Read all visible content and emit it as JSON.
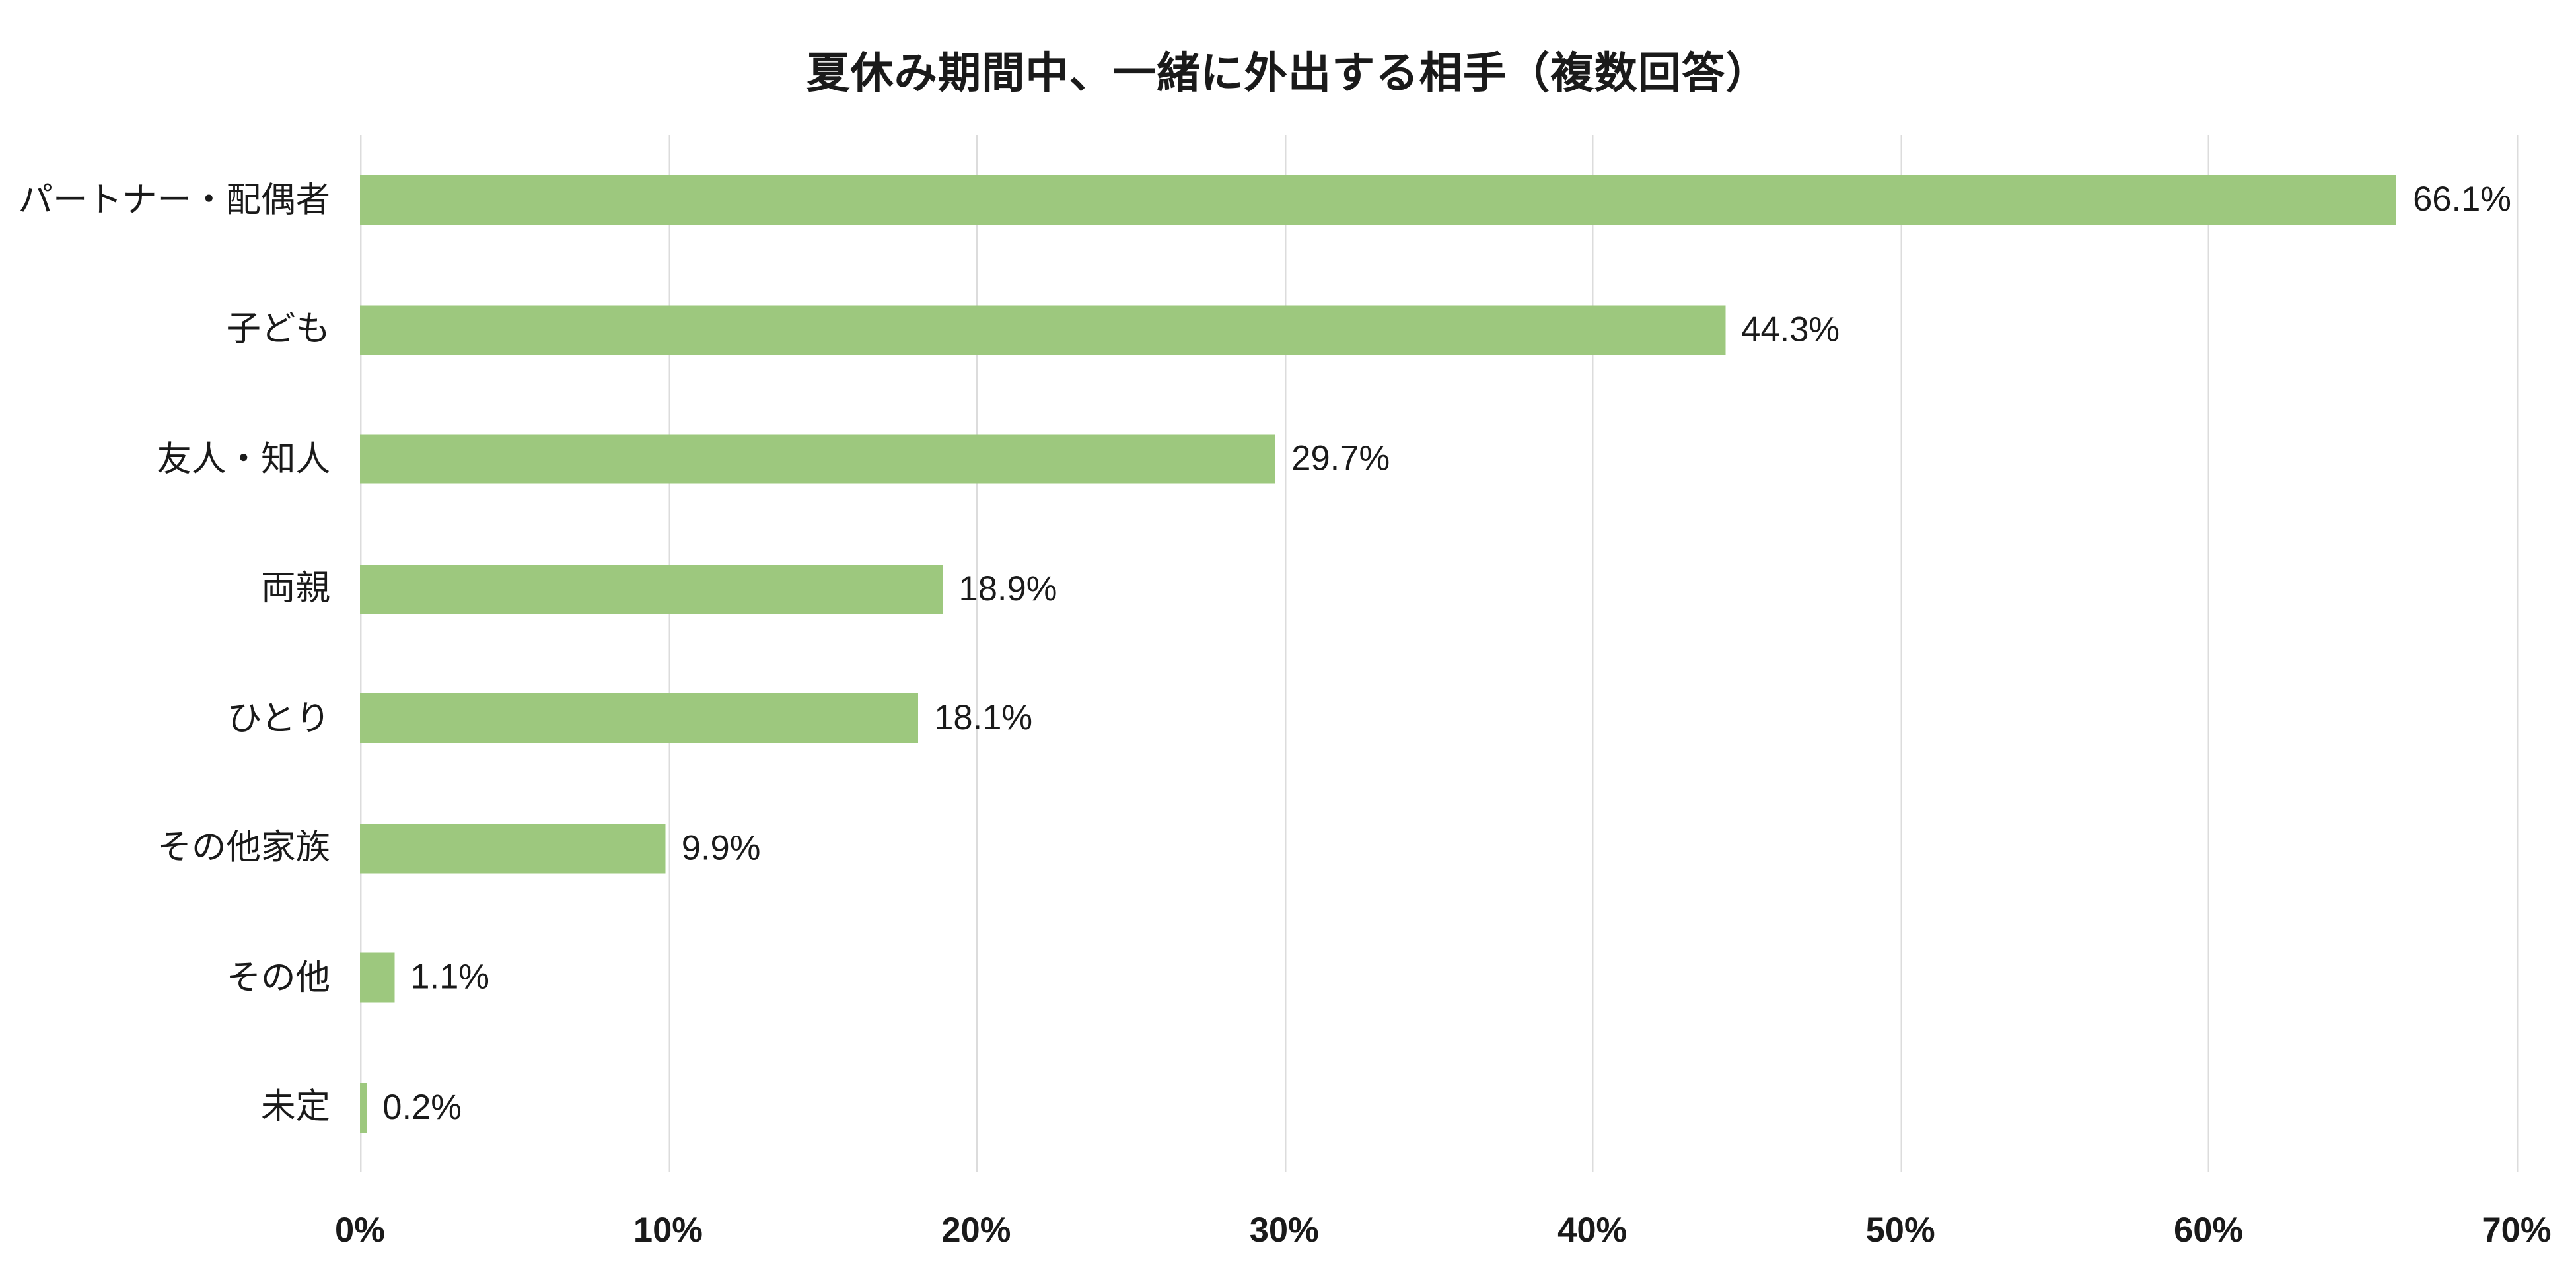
{
  "chart_data": {
    "type": "bar",
    "orientation": "horizontal",
    "title": "夏休み期間中、一緒に外出する相手（複数回答）",
    "categories": [
      "パートナー・配偶者",
      "子ども",
      "友人・知人",
      "両親",
      "ひとり",
      "その他家族",
      "その他",
      "未定"
    ],
    "values": [
      66.1,
      44.3,
      29.7,
      18.9,
      18.1,
      9.9,
      1.1,
      0.2
    ],
    "value_labels": [
      "66.1%",
      "44.3%",
      "29.7%",
      "18.9%",
      "18.1%",
      "9.9%",
      "1.1%",
      "0.2%"
    ],
    "xlabel": "",
    "ylabel": "",
    "xlim": [
      0,
      70
    ],
    "x_ticks": [
      "0%",
      "10%",
      "20%",
      "30%",
      "40%",
      "50%",
      "60%",
      "70%"
    ],
    "x_tick_values": [
      0,
      10,
      20,
      30,
      40,
      50,
      60,
      70
    ],
    "grid": true,
    "legend": "none",
    "bar_color": "#9dc87e",
    "grid_color": "#dcdcdc",
    "text_color": "#1a1a1a",
    "background_color": "#ffffff"
  }
}
